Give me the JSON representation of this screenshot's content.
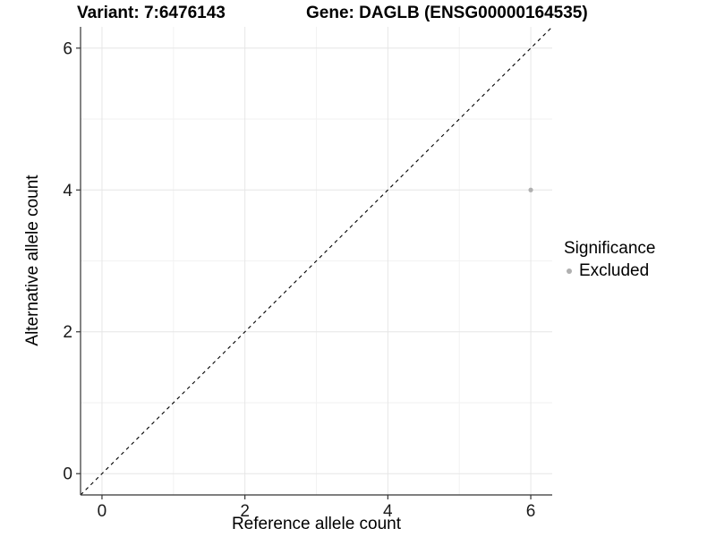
{
  "title": {
    "variant": "Variant: 7:6476143",
    "gene": "Gene: DAGLB (ENSG00000164535)"
  },
  "axes": {
    "x_label": "Reference allele count",
    "y_label": "Alternative allele count",
    "x_tick_labels": [
      "0",
      "2",
      "4",
      "6"
    ],
    "y_tick_labels": [
      "0",
      "2",
      "4",
      "6"
    ]
  },
  "legend": {
    "title": "Significance",
    "items": [
      {
        "label": "Excluded",
        "color": "#b0b0b0",
        "marker": "circle"
      }
    ]
  },
  "chart_data": {
    "type": "scatter",
    "title": "Variant: 7:6476143    Gene: DAGLB (ENSG00000164535)",
    "xlabel": "Reference allele count",
    "ylabel": "Alternative allele count",
    "xlim": [
      -0.3,
      6.3
    ],
    "ylim": [
      -0.3,
      6.3
    ],
    "x_major_ticks": [
      0,
      2,
      4,
      6
    ],
    "y_major_ticks": [
      0,
      2,
      4,
      6
    ],
    "x_minor_ticks": [
      1,
      3,
      5
    ],
    "y_minor_ticks": [
      1,
      3,
      5
    ],
    "grid": {
      "major": true,
      "minor": true
    },
    "legend_position": "right",
    "series": [
      {
        "name": "Excluded",
        "color": "#b0b0b0",
        "points": [
          {
            "x": 6,
            "y": 4
          }
        ]
      }
    ],
    "reference_line": {
      "type": "abline",
      "slope": 1,
      "intercept": 0,
      "style": "dashed",
      "color": "#000000"
    }
  },
  "colors": {
    "background": "#ffffff",
    "grid_major": "#e6e6e6",
    "grid_minor": "#f2f2f2",
    "axis_line": "#333333",
    "tick_text": "#1a1a1a",
    "point": "#b0b0b0",
    "reference_line": "#000000"
  }
}
